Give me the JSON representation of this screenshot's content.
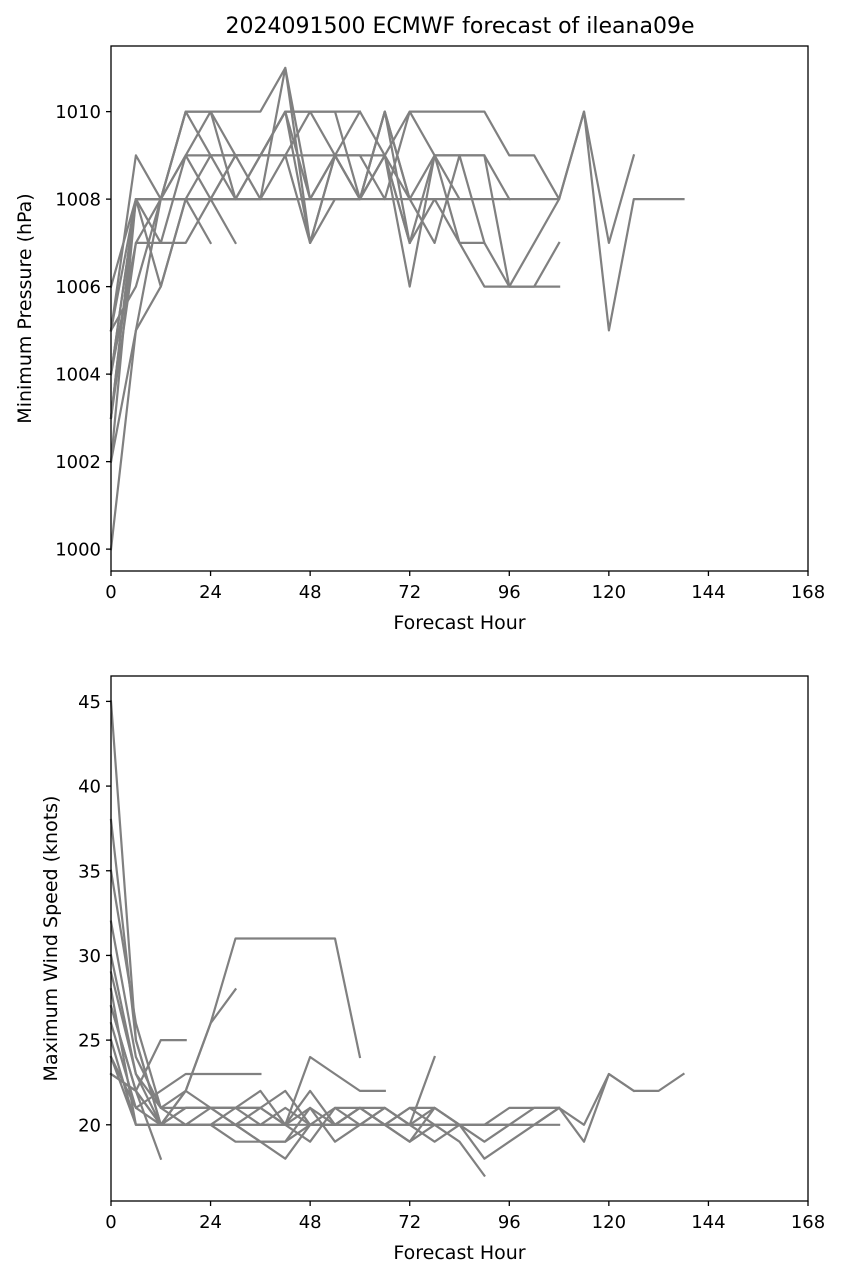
{
  "figure_title": "2024091500 ECMWF forecast of ileana09e",
  "colors": {
    "series": "#808080",
    "axes": "#000000",
    "background": "#ffffff"
  },
  "chart_data": [
    {
      "type": "line",
      "title": "2024091500 ECMWF forecast of ileana09e",
      "xlabel": "Forecast Hour",
      "ylabel": "Minimum Pressure (hPa)",
      "xlim": [
        0,
        168
      ],
      "ylim": [
        999.5,
        1011.5
      ],
      "xticks": [
        0,
        24,
        48,
        72,
        96,
        120,
        144,
        168
      ],
      "yticks": [
        1000,
        1002,
        1004,
        1006,
        1008,
        1010
      ],
      "grid": false,
      "series": [
        {
          "x": [
            0,
            6,
            12,
            18,
            24,
            30,
            36,
            42,
            48,
            54,
            60,
            66,
            72,
            78,
            84,
            90,
            96,
            102,
            108,
            114,
            120,
            126,
            132,
            138
          ],
          "y": [
            1004,
            1008,
            1008,
            1008,
            1008,
            1008,
            1008,
            1011,
            1007,
            1008,
            1008,
            1010,
            1007,
            1009,
            1009,
            1009,
            1008,
            1008,
            1008,
            1010,
            1005,
            1008,
            1008,
            1008
          ]
        },
        {
          "x": [
            0,
            6,
            12,
            18,
            24,
            30,
            36,
            42,
            48,
            54,
            60,
            66,
            72,
            78,
            84,
            90,
            96,
            102,
            108,
            114,
            120,
            126
          ],
          "y": [
            1005,
            1009,
            1008,
            1010,
            1010,
            1010,
            1010,
            1011,
            1008,
            1009,
            1008,
            1009,
            1010,
            1010,
            1010,
            1010,
            1009,
            1009,
            1008,
            1010,
            1007,
            1009
          ]
        },
        {
          "x": [
            0,
            6,
            12,
            18,
            24,
            30,
            36,
            42,
            48,
            54,
            60,
            66,
            72,
            78,
            84,
            90,
            96,
            102,
            108
          ],
          "y": [
            1003,
            1007,
            1007,
            1009,
            1010,
            1008,
            1009,
            1010,
            1008,
            1009,
            1009,
            1008,
            1010,
            1009,
            1007,
            1007,
            1006,
            1007,
            1008
          ]
        },
        {
          "x": [
            0,
            6,
            12,
            18,
            24,
            30,
            36,
            42,
            48,
            54,
            60,
            66,
            72,
            78,
            84,
            90,
            96,
            102,
            108
          ],
          "y": [
            1002,
            1008,
            1006,
            1008,
            1009,
            1009,
            1008,
            1009,
            1010,
            1010,
            1008,
            1009,
            1006,
            1009,
            1009,
            1009,
            1006,
            1006,
            1007
          ]
        },
        {
          "x": [
            0,
            6,
            12,
            18,
            24,
            30,
            36,
            42,
            48,
            54,
            60,
            66,
            72,
            78,
            84,
            90,
            96,
            102,
            108
          ],
          "y": [
            1006,
            1008,
            1008,
            1008,
            1008,
            1008,
            1008,
            1008,
            1008,
            1008,
            1008,
            1008,
            1008,
            1008,
            1007,
            1006,
            1006,
            1006,
            1006
          ]
        },
        {
          "x": [
            0,
            6,
            12,
            18,
            24,
            30,
            36,
            42,
            48,
            54,
            60,
            66,
            72,
            78,
            84,
            90,
            96
          ],
          "y": [
            1004,
            1007,
            1008,
            1009,
            1009,
            1008,
            1009,
            1009,
            1009,
            1009,
            1009,
            1009,
            1007,
            1008,
            1008,
            1008,
            1008
          ]
        },
        {
          "x": [
            0,
            6,
            12,
            18,
            24,
            30,
            36,
            42,
            48,
            54,
            60,
            66,
            72,
            78,
            84,
            90
          ],
          "y": [
            1005,
            1006,
            1008,
            1008,
            1008,
            1009,
            1009,
            1009,
            1007,
            1009,
            1008,
            1010,
            1008,
            1007,
            1009,
            1007
          ]
        },
        {
          "x": [
            0,
            6,
            12,
            18,
            24,
            30,
            36,
            42,
            48,
            54,
            60,
            66,
            72,
            78,
            84
          ],
          "y": [
            1003,
            1008,
            1008,
            1010,
            1009,
            1009,
            1009,
            1010,
            1007,
            1009,
            1010,
            1009,
            1008,
            1009,
            1008
          ]
        },
        {
          "x": [
            0,
            6,
            12,
            18,
            24,
            30,
            36,
            42,
            48,
            54,
            60,
            66,
            72,
            78
          ],
          "y": [
            1004,
            1008,
            1008,
            1008,
            1008,
            1008,
            1008,
            1008,
            1008,
            1008,
            1008,
            1010,
            1008,
            1008
          ]
        },
        {
          "x": [
            0,
            6,
            12,
            18,
            24,
            30,
            36,
            42,
            48,
            54,
            60,
            66,
            72
          ],
          "y": [
            1002,
            1005,
            1008,
            1009,
            1008,
            1009,
            1009,
            1010,
            1010,
            1009,
            1008,
            1009,
            1007
          ]
        },
        {
          "x": [
            0,
            6,
            12,
            18,
            24,
            30,
            36,
            42,
            48,
            54,
            60
          ],
          "y": [
            1003,
            1008,
            1008,
            1010,
            1010,
            1009,
            1009,
            1010,
            1010,
            1010,
            1010
          ]
        },
        {
          "x": [
            0,
            6,
            12,
            18,
            24,
            30
          ],
          "y": [
            1005,
            1008,
            1007,
            1007,
            1008,
            1007
          ]
        },
        {
          "x": [
            0,
            6,
            12,
            18,
            24
          ],
          "y": [
            1000,
            1005,
            1006,
            1008,
            1007
          ]
        }
      ]
    },
    {
      "type": "line",
      "xlabel": "Forecast Hour",
      "ylabel": "Maximum Wind Speed (knots)",
      "xlim": [
        0,
        168
      ],
      "ylim": [
        15.5,
        46.5
      ],
      "xticks": [
        0,
        24,
        48,
        72,
        96,
        120,
        144,
        168
      ],
      "yticks": [
        20,
        25,
        30,
        35,
        40,
        45
      ],
      "grid": false,
      "series": [
        {
          "x": [
            0,
            6,
            12,
            18,
            24,
            30,
            36,
            42,
            48,
            54,
            60,
            66,
            72,
            78,
            84,
            90,
            96,
            102,
            108,
            114,
            120,
            126,
            132,
            138
          ],
          "y": [
            24,
            20,
            20,
            20,
            20,
            20,
            20,
            20,
            20,
            20,
            20,
            20,
            20,
            20,
            20,
            20,
            20,
            20,
            21,
            20,
            23,
            22,
            22,
            23
          ]
        },
        {
          "x": [
            0,
            6,
            12,
            18,
            24,
            30,
            36,
            42,
            48,
            54,
            60,
            66,
            72,
            78,
            84,
            90,
            96,
            102,
            108,
            114,
            120,
            126
          ],
          "y": [
            30,
            23,
            21,
            21,
            21,
            21,
            20,
            21,
            20,
            21,
            20,
            21,
            20,
            20,
            20,
            20,
            20,
            21,
            21,
            19,
            23,
            22
          ]
        },
        {
          "x": [
            0,
            6,
            12,
            18,
            24,
            30,
            36,
            42,
            48,
            54,
            60,
            66,
            72,
            78,
            84,
            90,
            96,
            102,
            108
          ],
          "y": [
            23,
            22,
            20,
            20,
            20,
            20,
            19,
            19,
            20,
            20,
            21,
            20,
            20,
            21,
            20,
            20,
            21,
            21,
            21
          ]
        },
        {
          "x": [
            0,
            6,
            12,
            18,
            24,
            30,
            36,
            42,
            48,
            54,
            60,
            66,
            72,
            78,
            84,
            90,
            96,
            102,
            108
          ],
          "y": [
            38,
            25,
            20,
            20,
            20,
            20,
            20,
            20,
            21,
            19,
            20,
            20,
            19,
            21,
            20,
            18,
            19,
            20,
            21
          ]
        },
        {
          "x": [
            0,
            6,
            12,
            18,
            24,
            30,
            36,
            42,
            48,
            54,
            60,
            66,
            72,
            78,
            84,
            90,
            96,
            102,
            108
          ],
          "y": [
            35,
            26,
            21,
            20,
            20,
            21,
            21,
            20,
            19,
            21,
            21,
            20,
            21,
            20,
            20,
            19,
            20,
            20,
            20
          ]
        },
        {
          "x": [
            0,
            6,
            12,
            18,
            24,
            30,
            36,
            42,
            48,
            54,
            60,
            66,
            72,
            78,
            84,
            90,
            96
          ],
          "y": [
            27,
            22,
            20,
            20,
            20,
            19,
            19,
            19,
            21,
            20,
            20,
            21,
            20,
            19,
            20,
            20,
            20
          ]
        },
        {
          "x": [
            0,
            6,
            12,
            18,
            24,
            30,
            36,
            42,
            48,
            54,
            60,
            66,
            72,
            78,
            84,
            90
          ],
          "y": [
            45,
            25,
            20,
            21,
            21,
            20,
            21,
            20,
            22,
            20,
            21,
            20,
            19,
            20,
            19,
            17
          ]
        },
        {
          "x": [
            0,
            6,
            12,
            18,
            24,
            30,
            36,
            42,
            48,
            54,
            60,
            66,
            72,
            78,
            84
          ],
          "y": [
            32,
            24,
            21,
            22,
            21,
            20,
            19,
            18,
            20,
            20,
            21,
            20,
            21,
            21,
            20
          ]
        },
        {
          "x": [
            0,
            6,
            12,
            18,
            24,
            30,
            36,
            42,
            48,
            54,
            60,
            66,
            72,
            78
          ],
          "y": [
            28,
            20,
            20,
            20,
            21,
            21,
            21,
            22,
            20,
            20,
            21,
            21,
            20,
            24
          ]
        },
        {
          "x": [
            0,
            6,
            12,
            18,
            24,
            30,
            36,
            42,
            48,
            54,
            60,
            66
          ],
          "y": [
            29,
            23,
            20,
            21,
            21,
            21,
            22,
            20,
            24,
            23,
            22,
            22
          ]
        },
        {
          "x": [
            0,
            6,
            12,
            18,
            24,
            30,
            36,
            42,
            48,
            54,
            60
          ],
          "y": [
            26,
            21,
            20,
            22,
            26,
            31,
            31,
            31,
            31,
            31,
            24
          ]
        },
        {
          "x": [
            0,
            6,
            12,
            18,
            24,
            30,
            36
          ],
          "y": [
            24,
            21,
            22,
            23,
            23,
            23,
            23
          ]
        },
        {
          "x": [
            0,
            6,
            12,
            18,
            24,
            30
          ],
          "y": [
            25,
            20,
            20,
            22,
            26,
            28
          ]
        },
        {
          "x": [
            0,
            6,
            12,
            18
          ],
          "y": [
            27,
            22,
            25,
            25
          ]
        },
        {
          "x": [
            0,
            6,
            12
          ],
          "y": [
            23,
            22,
            18
          ]
        }
      ]
    }
  ]
}
